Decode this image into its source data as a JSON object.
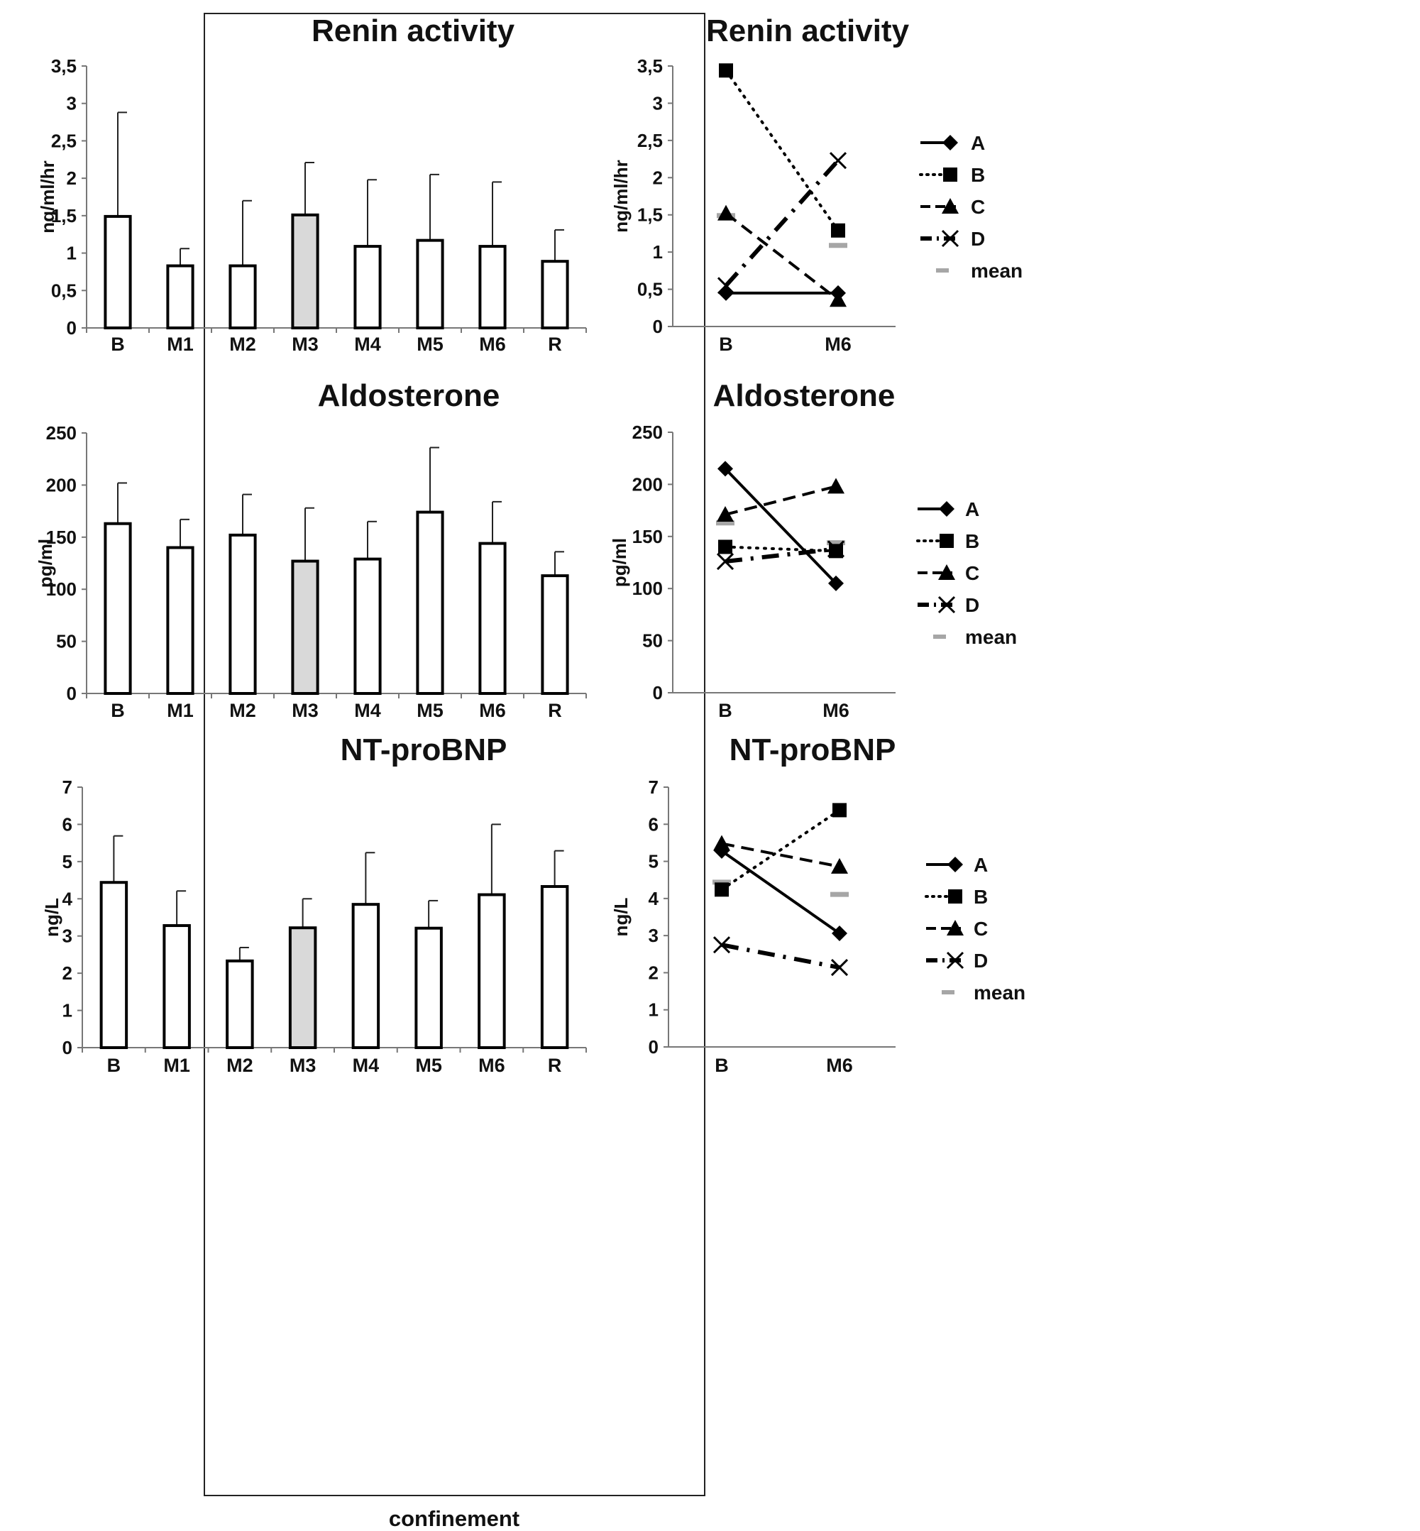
{
  "confinement_label": "confinement",
  "chart_data": [
    {
      "id": "renin-bar",
      "type": "bar",
      "title": "Renin activity",
      "ylabel": "ng/ml/hr",
      "xlabel": "",
      "categories": [
        "B",
        "M1",
        "M2",
        "M3",
        "M4",
        "M5",
        "M6",
        "R"
      ],
      "values": [
        1.49,
        0.83,
        0.83,
        1.51,
        1.09,
        1.17,
        1.09,
        0.89
      ],
      "error_upper": [
        2.88,
        1.06,
        1.7,
        2.21,
        1.98,
        2.05,
        1.95,
        1.31
      ],
      "highlighted_category": "M3",
      "ylim": [
        0,
        3.5
      ],
      "yticks": [
        "0",
        "0,5",
        "1",
        "1,5",
        "2",
        "2,5",
        "3",
        "3,5"
      ],
      "fill": "#ffffff",
      "highlight_fill": "#d9d9d9"
    },
    {
      "id": "aldo-bar",
      "type": "bar",
      "title": "Aldosterone",
      "ylabel": "pg/ml",
      "xlabel": "",
      "categories": [
        "B",
        "M1",
        "M2",
        "M3",
        "M4",
        "M5",
        "M6",
        "R"
      ],
      "values": [
        163,
        140,
        152,
        127,
        129,
        174,
        144,
        113
      ],
      "error_upper": [
        202,
        167,
        191,
        178,
        165,
        236,
        184,
        136
      ],
      "highlighted_category": "M3",
      "ylim": [
        0,
        250
      ],
      "yticks": [
        "0",
        "50",
        "100",
        "150",
        "200",
        "250"
      ],
      "fill": "#ffffff",
      "highlight_fill": "#d9d9d9"
    },
    {
      "id": "bnp-bar",
      "type": "bar",
      "title": "NT-proBNP",
      "ylabel": "ng/L",
      "xlabel": "confinement",
      "categories": [
        "B",
        "M1",
        "M2",
        "M3",
        "M4",
        "M5",
        "M6",
        "R"
      ],
      "values": [
        4.44,
        3.28,
        2.33,
        3.22,
        3.85,
        3.21,
        4.11,
        4.33
      ],
      "error_upper": [
        5.69,
        4.21,
        2.69,
        4.0,
        5.24,
        3.95,
        6.0,
        5.29
      ],
      "highlighted_category": "M3",
      "ylim": [
        0,
        7
      ],
      "yticks": [
        "0",
        "1",
        "2",
        "3",
        "4",
        "5",
        "6",
        "7"
      ],
      "fill": "#ffffff",
      "highlight_fill": "#d9d9d9"
    },
    {
      "id": "renin-line",
      "type": "line",
      "title": "Renin activity",
      "ylabel": "ng/ml/hr",
      "categories": [
        "B",
        "M6"
      ],
      "ylim": [
        0,
        3.5
      ],
      "yticks": [
        "0",
        "0,5",
        "1",
        "1,5",
        "2",
        "2,5",
        "3",
        "3,5"
      ],
      "series": [
        {
          "name": "A",
          "values": [
            0.45,
            0.45
          ],
          "dash": "solid",
          "marker": "diamond"
        },
        {
          "name": "B",
          "values": [
            3.44,
            1.29
          ],
          "dash": "dotted",
          "marker": "square"
        },
        {
          "name": "C",
          "values": [
            1.52,
            0.36
          ],
          "dash": "dashed",
          "marker": "triangle"
        },
        {
          "name": "D",
          "values": [
            0.55,
            2.23
          ],
          "dash": "dashdot",
          "marker": "x"
        }
      ],
      "mean": {
        "name": "mean",
        "values": [
          1.49,
          1.09
        ],
        "color": "#a6a6a6"
      }
    },
    {
      "id": "aldo-line",
      "type": "line",
      "title": "Aldosterone",
      "ylabel": "pg/ml",
      "categories": [
        "B",
        "M6"
      ],
      "ylim": [
        0,
        250
      ],
      "yticks": [
        "0",
        "50",
        "100",
        "150",
        "200",
        "250"
      ],
      "series": [
        {
          "name": "A",
          "values": [
            215,
            105
          ],
          "dash": "solid",
          "marker": "diamond"
        },
        {
          "name": "B",
          "values": [
            140,
            136
          ],
          "dash": "dotted",
          "marker": "square"
        },
        {
          "name": "C",
          "values": [
            171,
            198
          ],
          "dash": "dashed",
          "marker": "triangle"
        },
        {
          "name": "D",
          "values": [
            126,
            138
          ],
          "dash": "dashdot",
          "marker": "x"
        }
      ],
      "mean": {
        "name": "mean",
        "values": [
          163,
          144
        ],
        "color": "#a6a6a6"
      }
    },
    {
      "id": "bnp-line",
      "type": "line",
      "title": "NT-proBNP",
      "ylabel": "ng/L",
      "categories": [
        "B",
        "M6"
      ],
      "ylim": [
        0,
        7
      ],
      "yticks": [
        "0",
        "1",
        "2",
        "3",
        "4",
        "5",
        "6",
        "7"
      ],
      "series": [
        {
          "name": "A",
          "values": [
            5.28,
            3.06
          ],
          "dash": "solid",
          "marker": "diamond"
        },
        {
          "name": "B",
          "values": [
            4.24,
            6.38
          ],
          "dash": "dotted",
          "marker": "square"
        },
        {
          "name": "C",
          "values": [
            5.48,
            4.86
          ],
          "dash": "dashed",
          "marker": "triangle"
        },
        {
          "name": "D",
          "values": [
            2.75,
            2.14
          ],
          "dash": "dashdot",
          "marker": "x"
        }
      ],
      "mean": {
        "name": "mean",
        "values": [
          4.44,
          4.11
        ],
        "color": "#a6a6a6"
      }
    }
  ]
}
